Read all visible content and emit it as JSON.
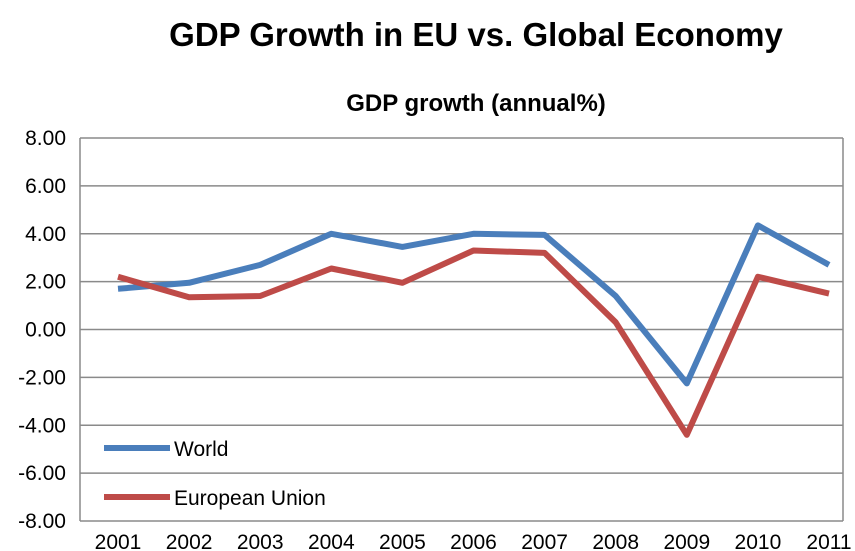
{
  "chart_data": {
    "type": "line",
    "title": "GDP Growth in EU vs. Global Economy",
    "subtitle": "GDP growth (annual%)",
    "xlabel": "",
    "ylabel": "",
    "categories": [
      "2001",
      "2002",
      "2003",
      "2004",
      "2005",
      "2006",
      "2007",
      "2008",
      "2009",
      "2010",
      "2011"
    ],
    "series": [
      {
        "name": "World",
        "color": "#4a7ebb",
        "values": [
          1.7,
          1.95,
          2.7,
          4.0,
          3.45,
          4.0,
          3.95,
          1.4,
          -2.25,
          4.35,
          2.7
        ]
      },
      {
        "name": "European Union",
        "color": "#be4b48",
        "values": [
          2.2,
          1.35,
          1.4,
          2.55,
          1.95,
          3.3,
          3.2,
          0.3,
          -4.4,
          2.2,
          1.5
        ]
      }
    ],
    "ylim": [
      -8,
      8
    ],
    "yticks": [
      "8.00",
      "6.00",
      "4.00",
      "2.00",
      "0.00",
      "-2.00",
      "-4.00",
      "-6.00",
      "-8.00"
    ],
    "grid": true,
    "legend_position": "bottom-left"
  }
}
